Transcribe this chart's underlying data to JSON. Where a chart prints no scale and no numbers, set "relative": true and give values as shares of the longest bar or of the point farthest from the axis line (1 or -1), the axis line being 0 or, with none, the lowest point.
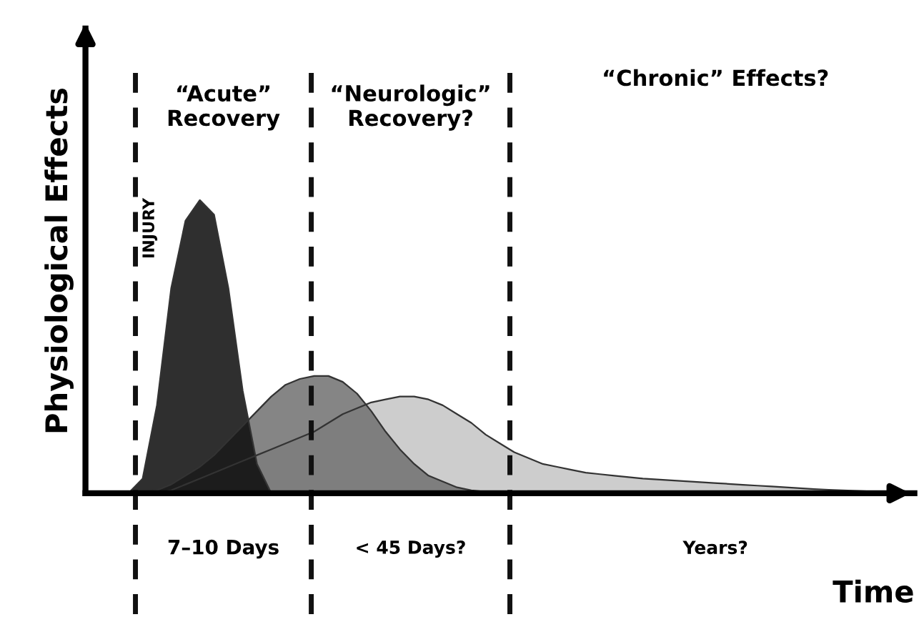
{
  "chart_data": {
    "type": "area",
    "relative": true,
    "xlabel": "Time",
    "ylabel": "Physiological Effects",
    "categories": [
      null,
      null,
      null,
      null,
      null,
      null,
      null,
      null,
      null,
      null,
      null,
      null,
      null,
      null,
      null,
      null,
      null,
      null,
      null,
      null,
      null,
      null,
      null,
      null,
      null,
      null,
      null,
      null,
      null,
      null,
      null,
      null,
      null,
      null,
      null,
      null,
      null,
      null,
      null,
      null,
      null,
      null,
      null,
      null,
      null,
      null,
      null,
      null,
      null,
      null,
      null,
      null,
      null,
      null,
      null,
      null,
      null,
      null
    ],
    "series": [
      {
        "color": "#c4c4c4",
        "values": [
          null,
          null,
          null,
          null,
          null,
          0,
          0.01,
          0.03,
          0.05,
          0.07,
          0.09,
          0.11,
          0.13,
          0.15,
          0.17,
          0.19,
          0.21,
          0.24,
          0.27,
          0.29,
          0.31,
          0.32,
          0.33,
          0.33,
          0.32,
          0.3,
          0.27,
          0.24,
          0.2,
          0.17,
          0.14,
          0.12,
          0.1,
          0.09,
          0.08,
          0.07,
          0.065,
          0.06,
          0.055,
          0.05,
          0.047,
          0.044,
          0.041,
          0.038,
          0.035,
          0.032,
          0.029,
          0.026,
          0.023,
          0.02,
          0.017,
          0.014,
          0.012,
          0.01,
          0.008,
          0.006,
          0,
          null
        ]
      },
      {
        "color": "#707070",
        "values": [
          null,
          null,
          null,
          null,
          0,
          0.01,
          0.03,
          0.06,
          0.09,
          0.13,
          0.18,
          0.23,
          0.28,
          0.33,
          0.37,
          0.39,
          0.4,
          0.4,
          0.38,
          0.34,
          0.28,
          0.21,
          0.15,
          0.1,
          0.06,
          0.04,
          0.02,
          0.01,
          0.005,
          0,
          null,
          null,
          null,
          null,
          null,
          null,
          null,
          null,
          null,
          null,
          null,
          null,
          null,
          null,
          null,
          null,
          null,
          null,
          null,
          null,
          null,
          null,
          null,
          null,
          null,
          null,
          null,
          null
        ]
      },
      {
        "color": "#0a0a0a",
        "values": [
          null,
          null,
          null,
          0,
          0.05,
          0.3,
          0.7,
          0.93,
          1.0,
          0.95,
          0.7,
          0.35,
          0.1,
          0,
          null,
          null,
          null,
          null,
          null,
          null,
          null,
          null,
          null,
          null,
          null,
          null,
          null,
          null,
          null,
          null,
          null,
          null,
          null,
          null,
          null,
          null,
          null,
          null,
          null,
          null,
          null,
          null,
          null,
          null,
          null,
          null,
          null,
          null,
          null,
          null,
          null,
          null,
          null,
          null,
          null,
          null,
          null,
          null
        ]
      }
    ],
    "annotations": [
      "“Acute” Recovery",
      "“Neurologic” Recovery?",
      "“Chronic” Effects?",
      "INJURY",
      "7–10 Days",
      "< 45 Days?",
      "Years?"
    ]
  }
}
